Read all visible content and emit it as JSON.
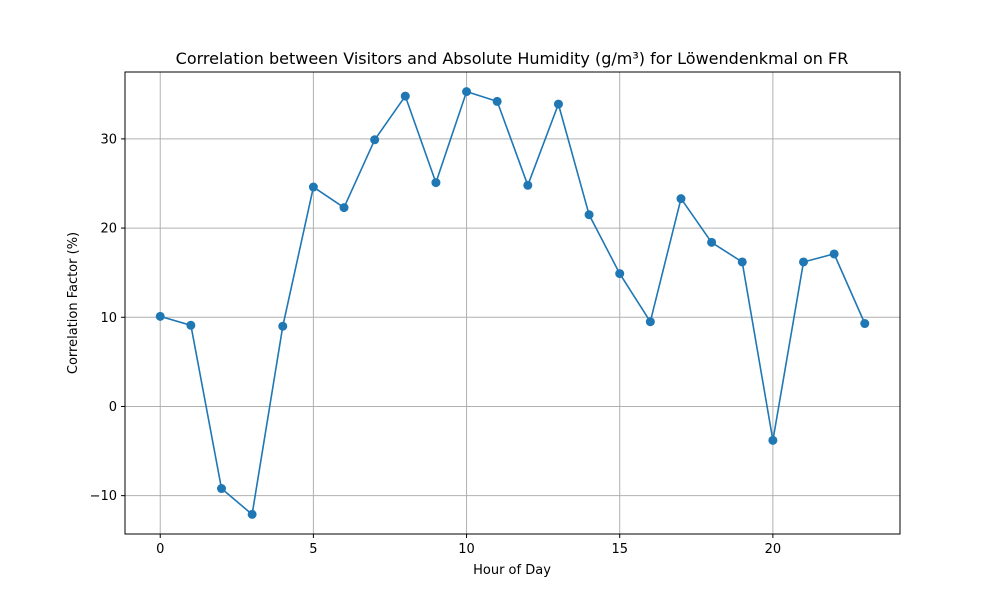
{
  "chart_data": {
    "type": "line",
    "title": "Correlation between Visitors and Absolute Humidity (g/m³) for Löwendenkmal on FR",
    "xlabel": "Hour of Day",
    "ylabel": "Correlation Factor (%)",
    "xlim": [
      -1.15,
      24.15
    ],
    "ylim": [
      -14.3,
      37.5
    ],
    "xticks": [
      0,
      5,
      10,
      15,
      20
    ],
    "yticks": [
      -10,
      0,
      10,
      20,
      30
    ],
    "grid": true,
    "series_color": "#1f77b4",
    "x": [
      0,
      1,
      2,
      3,
      4,
      5,
      6,
      7,
      8,
      9,
      10,
      11,
      12,
      13,
      14,
      15,
      16,
      17,
      18,
      19,
      20,
      21,
      22,
      23
    ],
    "y": [
      10.1,
      9.1,
      -9.2,
      -12.1,
      9.0,
      24.6,
      22.3,
      29.9,
      34.8,
      25.1,
      35.3,
      34.2,
      24.8,
      33.9,
      21.5,
      14.9,
      9.5,
      23.3,
      18.4,
      16.2,
      -3.8,
      16.2,
      17.1,
      9.3
    ]
  }
}
